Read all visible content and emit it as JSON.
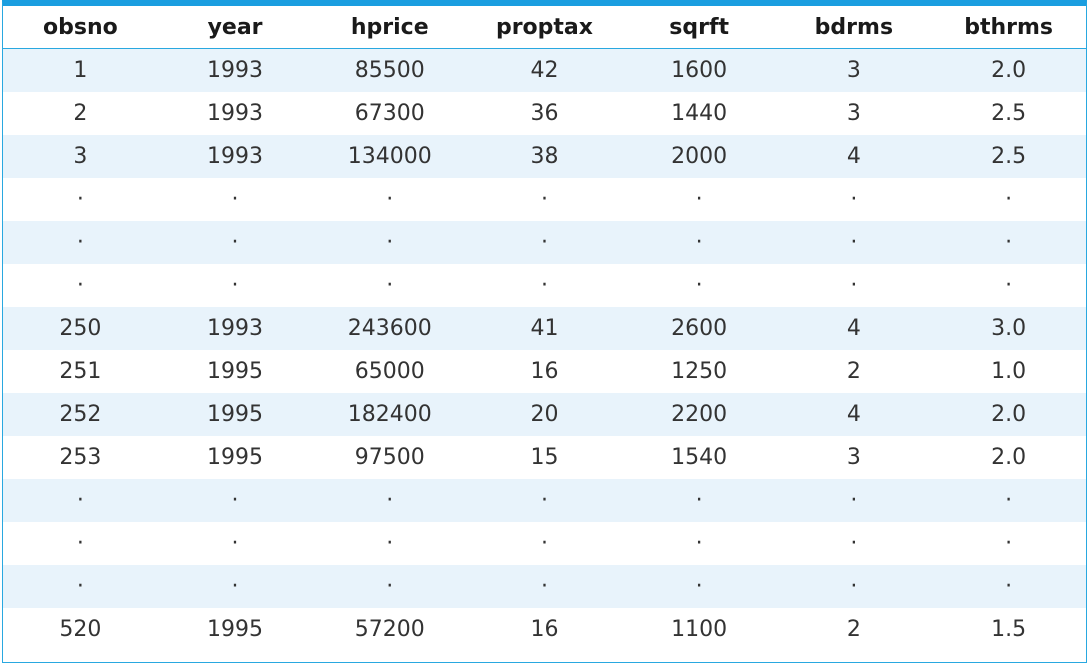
{
  "table": {
    "columns": [
      "obsno",
      "year",
      "hprice",
      "proptax",
      "sqrft",
      "bdrms",
      "bthrms"
    ],
    "rows": [
      [
        "1",
        "1993",
        "85500",
        "42",
        "1600",
        "3",
        "2.0"
      ],
      [
        "2",
        "1993",
        "67300",
        "36",
        "1440",
        "3",
        "2.5"
      ],
      [
        "3",
        "1993",
        "134000",
        "38",
        "2000",
        "4",
        "2.5"
      ],
      [
        "·",
        "·",
        "·",
        "·",
        "·",
        "·",
        "·"
      ],
      [
        "·",
        "·",
        "·",
        "·",
        "·",
        "·",
        "·"
      ],
      [
        "·",
        "·",
        "·",
        "·",
        "·",
        "·",
        "·"
      ],
      [
        "250",
        "1993",
        "243600",
        "41",
        "2600",
        "4",
        "3.0"
      ],
      [
        "251",
        "1995",
        "65000",
        "16",
        "1250",
        "2",
        "1.0"
      ],
      [
        "252",
        "1995",
        "182400",
        "20",
        "2200",
        "4",
        "2.0"
      ],
      [
        "253",
        "1995",
        "97500",
        "15",
        "1540",
        "3",
        "2.0"
      ],
      [
        "·",
        "·",
        "·",
        "·",
        "·",
        "·",
        "·"
      ],
      [
        "·",
        "·",
        "·",
        "·",
        "·",
        "·",
        "·"
      ],
      [
        "·",
        "·",
        "·",
        "·",
        "·",
        "·",
        "·"
      ],
      [
        "520",
        "1995",
        "57200",
        "16",
        "1100",
        "2",
        "1.5"
      ]
    ]
  }
}
